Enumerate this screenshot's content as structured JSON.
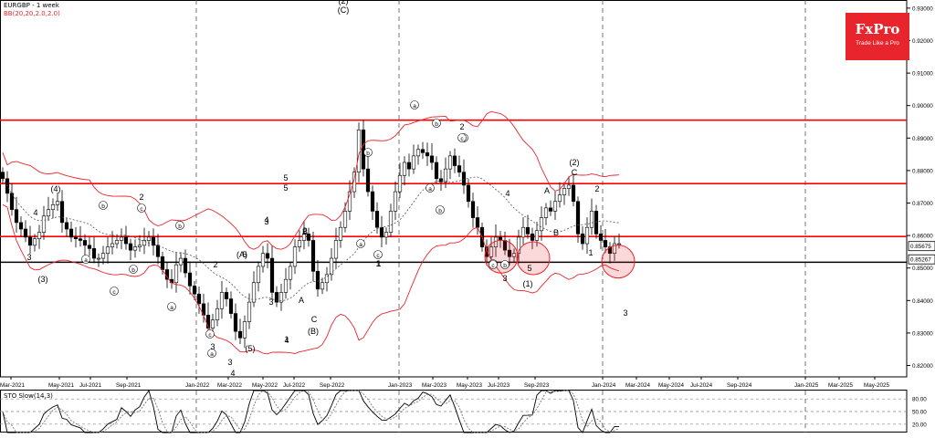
{
  "header": {
    "title": "EURGBP - 1 week",
    "indicator": "BB(20,20,2.0,2.0)"
  },
  "logo": {
    "brand": "FxPro",
    "tagline": "Trade Like a Pro"
  },
  "sto_label": "STO Slow(14,3)",
  "colors": {
    "level_line": "#ff0000",
    "current_line": "#000000",
    "bollinger": "#e8252c",
    "candle_up": "#ffffff",
    "candle_down": "#000000",
    "accent": "#e8252c"
  },
  "chart_data": {
    "type": "candlestick",
    "symbol": "EURGBP",
    "timeframe": "1 week",
    "ylim": [
      0.8165,
      0.9325
    ],
    "yticks": [
      "0.93000",
      "0.92000",
      "0.91000",
      "0.90000",
      "0.89000",
      "0.88000",
      "0.87000",
      "0.86000",
      "0.85000",
      "0.84000",
      "0.83000",
      "0.82000"
    ],
    "price_tags": [
      "0.85675",
      "0.85267"
    ],
    "xticks": [
      "Mar-2021",
      "May-2021",
      "Jul-2021",
      "Sep-2021",
      "Jan-2022",
      "Mar-2022",
      "May-2022",
      "Jul-2022",
      "Sep-2022",
      "Jan-2023",
      "Mar-2023",
      "May-2023",
      "Jul-2023",
      "Sep-2023",
      "Jan-2024",
      "Mar-2024",
      "May-2024",
      "Jul-2024",
      "Sep-2024",
      "Jan-2025",
      "Mar-2025",
      "May-2025"
    ],
    "horizontal_levels": [
      0.8955,
      0.876,
      0.8597,
      0.8518
    ],
    "close_series": [
      0.8775,
      0.873,
      0.868,
      0.864,
      0.862,
      0.8595,
      0.857,
      0.859,
      0.861,
      0.866,
      0.868,
      0.8695,
      0.8705,
      0.864,
      0.862,
      0.8595,
      0.859,
      0.8585,
      0.857,
      0.856,
      0.853,
      0.853,
      0.8545,
      0.8565,
      0.8575,
      0.8585,
      0.8595,
      0.8575,
      0.8555,
      0.8565,
      0.857,
      0.8585,
      0.8595,
      0.857,
      0.8535,
      0.8495,
      0.8465,
      0.8455,
      0.851,
      0.853,
      0.8485,
      0.8445,
      0.842,
      0.839,
      0.8355,
      0.8315,
      0.834,
      0.8375,
      0.8425,
      0.8405,
      0.836,
      0.8305,
      0.8285,
      0.8335,
      0.8395,
      0.8455,
      0.8505,
      0.8545,
      0.853,
      0.8425,
      0.8395,
      0.8425,
      0.8465,
      0.8505,
      0.8565,
      0.8585,
      0.8605,
      0.8585,
      0.849,
      0.8435,
      0.8455,
      0.848,
      0.853,
      0.8585,
      0.8625,
      0.8675,
      0.8735,
      0.8795,
      0.8925,
      0.8805,
      0.8735,
      0.8675,
      0.8625,
      0.8595,
      0.861,
      0.8675,
      0.8735,
      0.8785,
      0.8825,
      0.8805,
      0.8845,
      0.8865,
      0.8855,
      0.8845,
      0.8825,
      0.8775,
      0.8765,
      0.8805,
      0.8845,
      0.8815,
      0.8795,
      0.8755,
      0.8705,
      0.8655,
      0.8625,
      0.8565,
      0.8535,
      0.8565,
      0.8595,
      0.8585,
      0.8555,
      0.8535,
      0.8545,
      0.8595,
      0.8625,
      0.8605,
      0.8585,
      0.8615,
      0.8655,
      0.8685,
      0.8675,
      0.8705,
      0.8725,
      0.8745,
      0.8755,
      0.8705,
      0.8605,
      0.8575,
      0.8625,
      0.8675,
      0.8605,
      0.8585,
      0.8565,
      0.8545,
      0.8575,
      0.8575
    ],
    "wave_labels": [
      "(4)",
      "4",
      "5",
      "3",
      "(3)",
      "a",
      "b",
      "c",
      "2",
      "c",
      "b",
      "a",
      "b",
      "c",
      "a",
      "4",
      "3",
      "2",
      "3",
      "(5)",
      "5",
      "4",
      "3",
      "2",
      "1",
      "(A)",
      "5",
      "3",
      "B",
      "4",
      "1",
      "A",
      "C",
      "(B)",
      "(2)",
      "(C)",
      "a",
      "b",
      "c",
      "1",
      "a",
      "b",
      "c",
      "a",
      "b",
      "2",
      "c",
      "4",
      "a",
      "b",
      "c",
      "3",
      "5",
      "(1)",
      "A",
      "B",
      "(2)",
      "C",
      "2",
      "1",
      "3"
    ],
    "annotation_circles": 3,
    "indicator": {
      "name": "STO Slow(14,3)",
      "ylim": [
        0,
        100
      ],
      "levels": [
        80,
        50,
        20
      ],
      "labels": [
        "80.00",
        "50.00",
        "20.00"
      ]
    }
  }
}
